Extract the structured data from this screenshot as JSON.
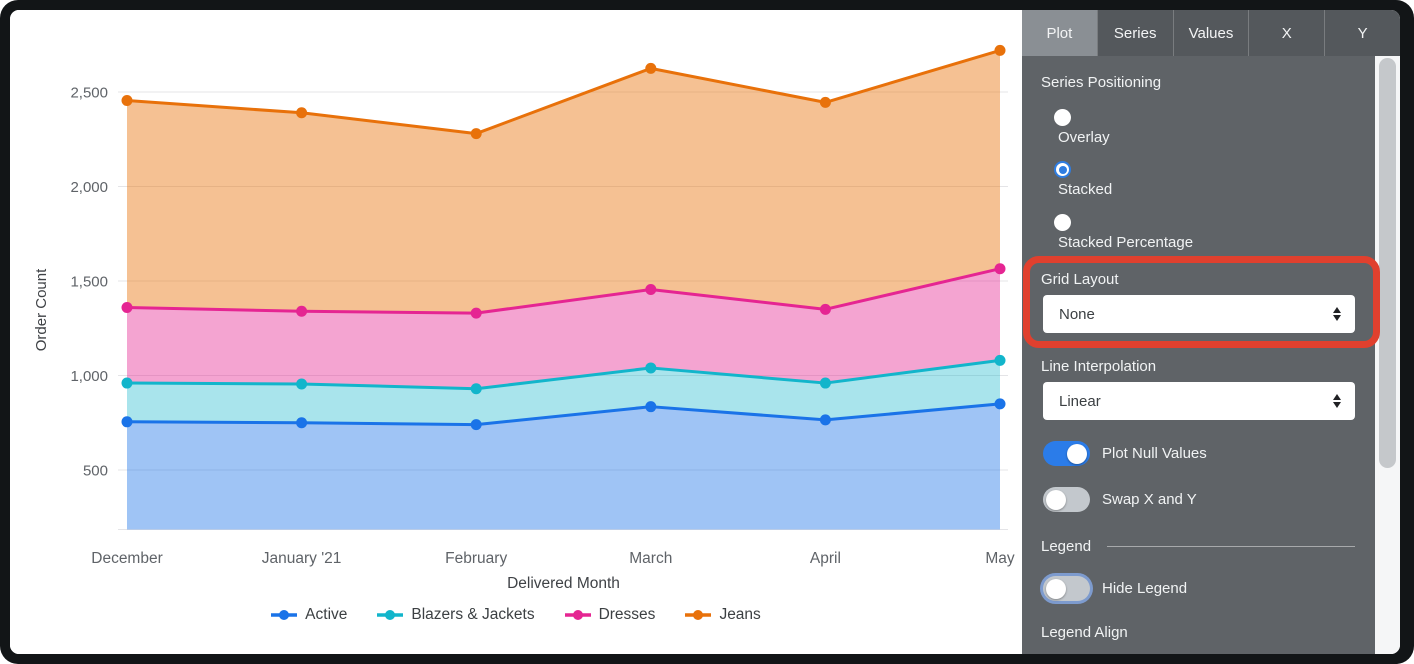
{
  "tabs": {
    "items": [
      {
        "label": "Plot",
        "selected": true
      },
      {
        "label": "Series",
        "selected": false
      },
      {
        "label": "Values",
        "selected": false
      },
      {
        "label": "X",
        "selected": false
      },
      {
        "label": "Y",
        "selected": false
      }
    ]
  },
  "panel": {
    "series_positioning_label": "Series Positioning",
    "radio_options": [
      {
        "label": "Overlay",
        "selected": false
      },
      {
        "label": "Stacked",
        "selected": true
      },
      {
        "label": "Stacked Percentage",
        "selected": false
      }
    ],
    "grid_layout_label": "Grid Layout",
    "grid_layout_value": "None",
    "line_interpolation_label": "Line Interpolation",
    "line_interpolation_value": "Linear",
    "plot_null_values_label": "Plot Null Values",
    "plot_null_values_on": true,
    "swap_x_y_label": "Swap X and Y",
    "swap_x_y_on": false,
    "legend_section_label": "Legend",
    "hide_legend_label": "Hide Legend",
    "hide_legend_on": false,
    "legend_align_label": "Legend Align"
  },
  "highlight_annotation": {
    "around": "Grid Layout dropdown",
    "color": "#E0402E"
  },
  "chart_data": {
    "type": "area",
    "stacked": true,
    "title": "",
    "xlabel": "Delivered Month",
    "ylabel": "Order Count",
    "x": [
      "December",
      "January '21",
      "February",
      "March",
      "April",
      "May"
    ],
    "series": [
      {
        "name": "Active",
        "color": "#1A73E8",
        "fill_alpha": 0.42,
        "values": [
          755,
          750,
          740,
          835,
          765,
          850
        ]
      },
      {
        "name": "Blazers & Jackets",
        "color": "#12B5CB",
        "fill_alpha": 0.36,
        "values": [
          205,
          205,
          190,
          205,
          195,
          230
        ]
      },
      {
        "name": "Dresses",
        "color": "#E52592",
        "fill_alpha": 0.42,
        "values": [
          400,
          385,
          400,
          415,
          390,
          485
        ]
      },
      {
        "name": "Jeans",
        "color": "#E8710A",
        "fill_alpha": 0.44,
        "values": [
          1095,
          1050,
          950,
          1170,
          1095,
          1155
        ]
      }
    ],
    "stacked_totals": [
      2455,
      2390,
      2280,
      2625,
      2445,
      2720
    ],
    "yticks": [
      500,
      1000,
      1500,
      2000,
      2500
    ],
    "grid": "horizontal",
    "legend_position": "bottom"
  }
}
